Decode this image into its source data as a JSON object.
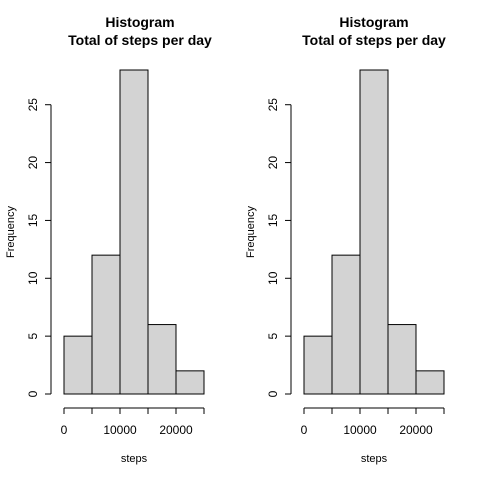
{
  "chart_data": [
    {
      "type": "bar",
      "title": "Histogram",
      "subtitle": "Total of steps per day",
      "xlabel": "steps",
      "ylabel": "Frequency",
      "bin_edges": [
        0,
        5000,
        10000,
        15000,
        20000,
        25000
      ],
      "values": [
        5,
        12,
        28,
        6,
        2
      ],
      "xlim": [
        0,
        25000
      ],
      "ylim": [
        0,
        28
      ],
      "x_tick_values": [
        0,
        5000,
        10000,
        15000,
        20000,
        25000
      ],
      "x_tick_labels": [
        "0",
        "",
        "10000",
        "",
        "20000",
        ""
      ],
      "y_ticks": [
        0,
        5,
        10,
        15,
        20,
        25
      ],
      "bar_fill": "#d3d3d3",
      "bar_stroke": "#000000",
      "grid": false,
      "legend": "none"
    },
    {
      "type": "bar",
      "title": "Histogram",
      "subtitle": "Total of steps per day",
      "xlabel": "steps",
      "ylabel": "Frequency",
      "bin_edges": [
        0,
        5000,
        10000,
        15000,
        20000,
        25000
      ],
      "values": [
        5,
        12,
        28,
        6,
        2
      ],
      "xlim": [
        0,
        25000
      ],
      "ylim": [
        0,
        28
      ],
      "x_tick_values": [
        0,
        5000,
        10000,
        15000,
        20000,
        25000
      ],
      "x_tick_labels": [
        "0",
        "",
        "10000",
        "",
        "20000",
        ""
      ],
      "y_ticks": [
        0,
        5,
        10,
        15,
        20,
        25
      ],
      "bar_fill": "#d3d3d3",
      "bar_stroke": "#000000",
      "grid": false,
      "legend": "none"
    }
  ]
}
